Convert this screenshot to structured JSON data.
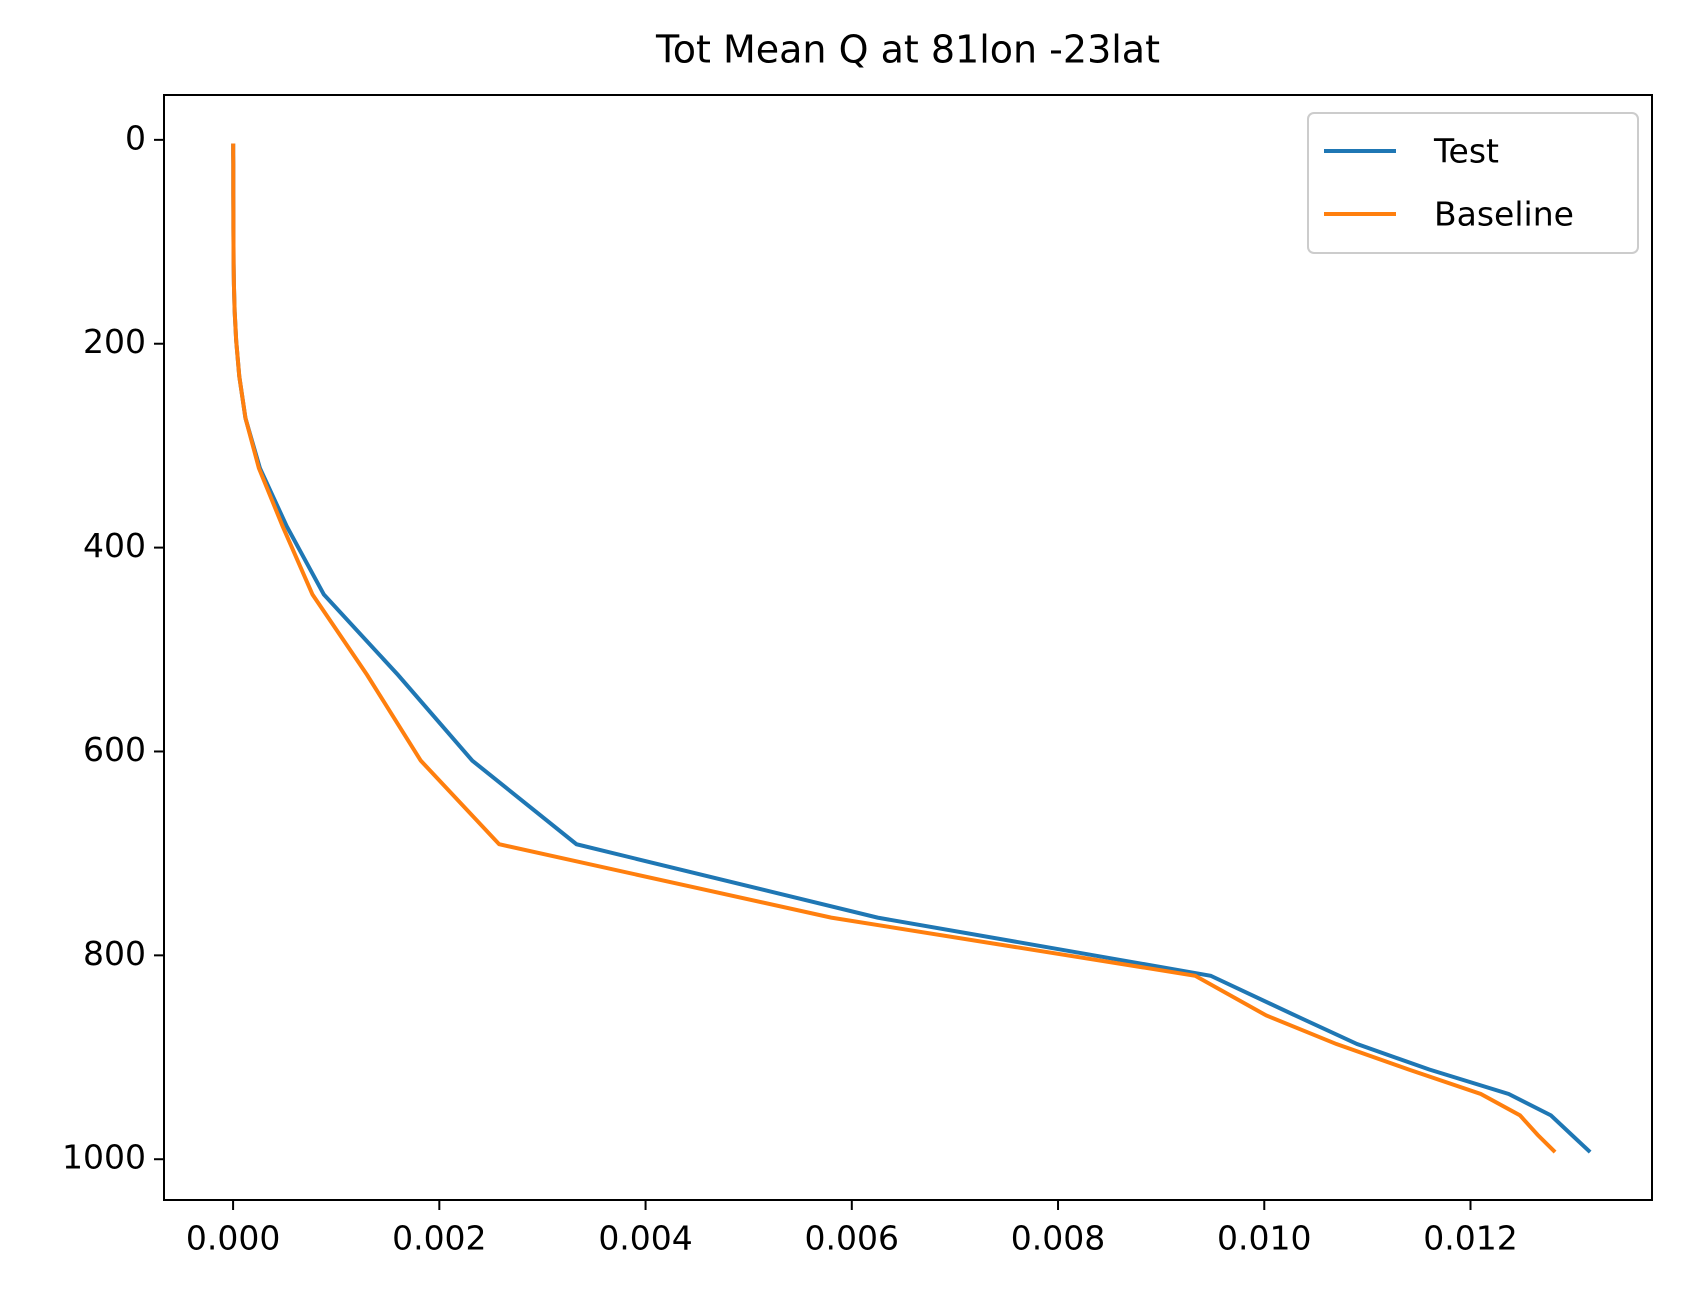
{
  "chart_data": {
    "type": "line",
    "title": "Tot Mean Q at 81lon -23lat",
    "y": [
      3.6,
      7.6,
      14,
      24,
      38,
      54,
      72,
      87,
      103,
      121,
      142,
      168,
      197,
      232,
      273,
      322,
      379,
      446,
      525,
      609,
      691,
      763,
      820,
      859,
      887,
      912,
      936,
      957,
      976,
      993
    ],
    "series": [
      {
        "name": "Test",
        "color": "#1f77b4",
        "values": [
          1e-06,
          1e-06,
          1e-06,
          2e-06,
          2e-06,
          2e-06,
          3e-06,
          3e-06,
          4e-06,
          5e-06,
          8e-06,
          1.5e-05,
          3e-05,
          6e-05,
          0.00012,
          0.00026,
          0.00052,
          0.00088,
          0.0016,
          0.00232,
          0.00333,
          0.00625,
          0.00948,
          0.0103,
          0.0109,
          0.0116,
          0.01237,
          0.01278,
          0.01298,
          0.01316
        ]
      },
      {
        "name": "Baseline",
        "color": "#ff7f0e",
        "values": [
          1e-06,
          1e-06,
          1e-06,
          2e-06,
          2e-06,
          2e-06,
          3e-06,
          3e-06,
          4e-06,
          5e-06,
          8e-06,
          1.5e-05,
          3e-05,
          6e-05,
          0.00012,
          0.00025,
          0.00048,
          0.00077,
          0.0013,
          0.00182,
          0.00258,
          0.0058,
          0.00933,
          0.01002,
          0.0107,
          0.0114,
          0.0121,
          0.01248,
          0.01265,
          0.01282
        ]
      }
    ],
    "xlim": [
      -0.00067,
      0.01376
    ],
    "xticks": [
      {
        "value": 0,
        "label": "0.000"
      },
      {
        "value": 0.002,
        "label": "0.002"
      },
      {
        "value": 0.004,
        "label": "0.004"
      },
      {
        "value": 0.006,
        "label": "0.006"
      },
      {
        "value": 0.008,
        "label": "0.008"
      },
      {
        "value": 0.01,
        "label": "0.010"
      },
      {
        "value": 0.012,
        "label": "0.012"
      }
    ],
    "ylim": [
      -44,
      1040
    ],
    "y_inverted": true,
    "yticks": [
      0,
      200,
      400,
      600,
      800,
      1000
    ],
    "legend": "upper-right",
    "grid": false
  }
}
